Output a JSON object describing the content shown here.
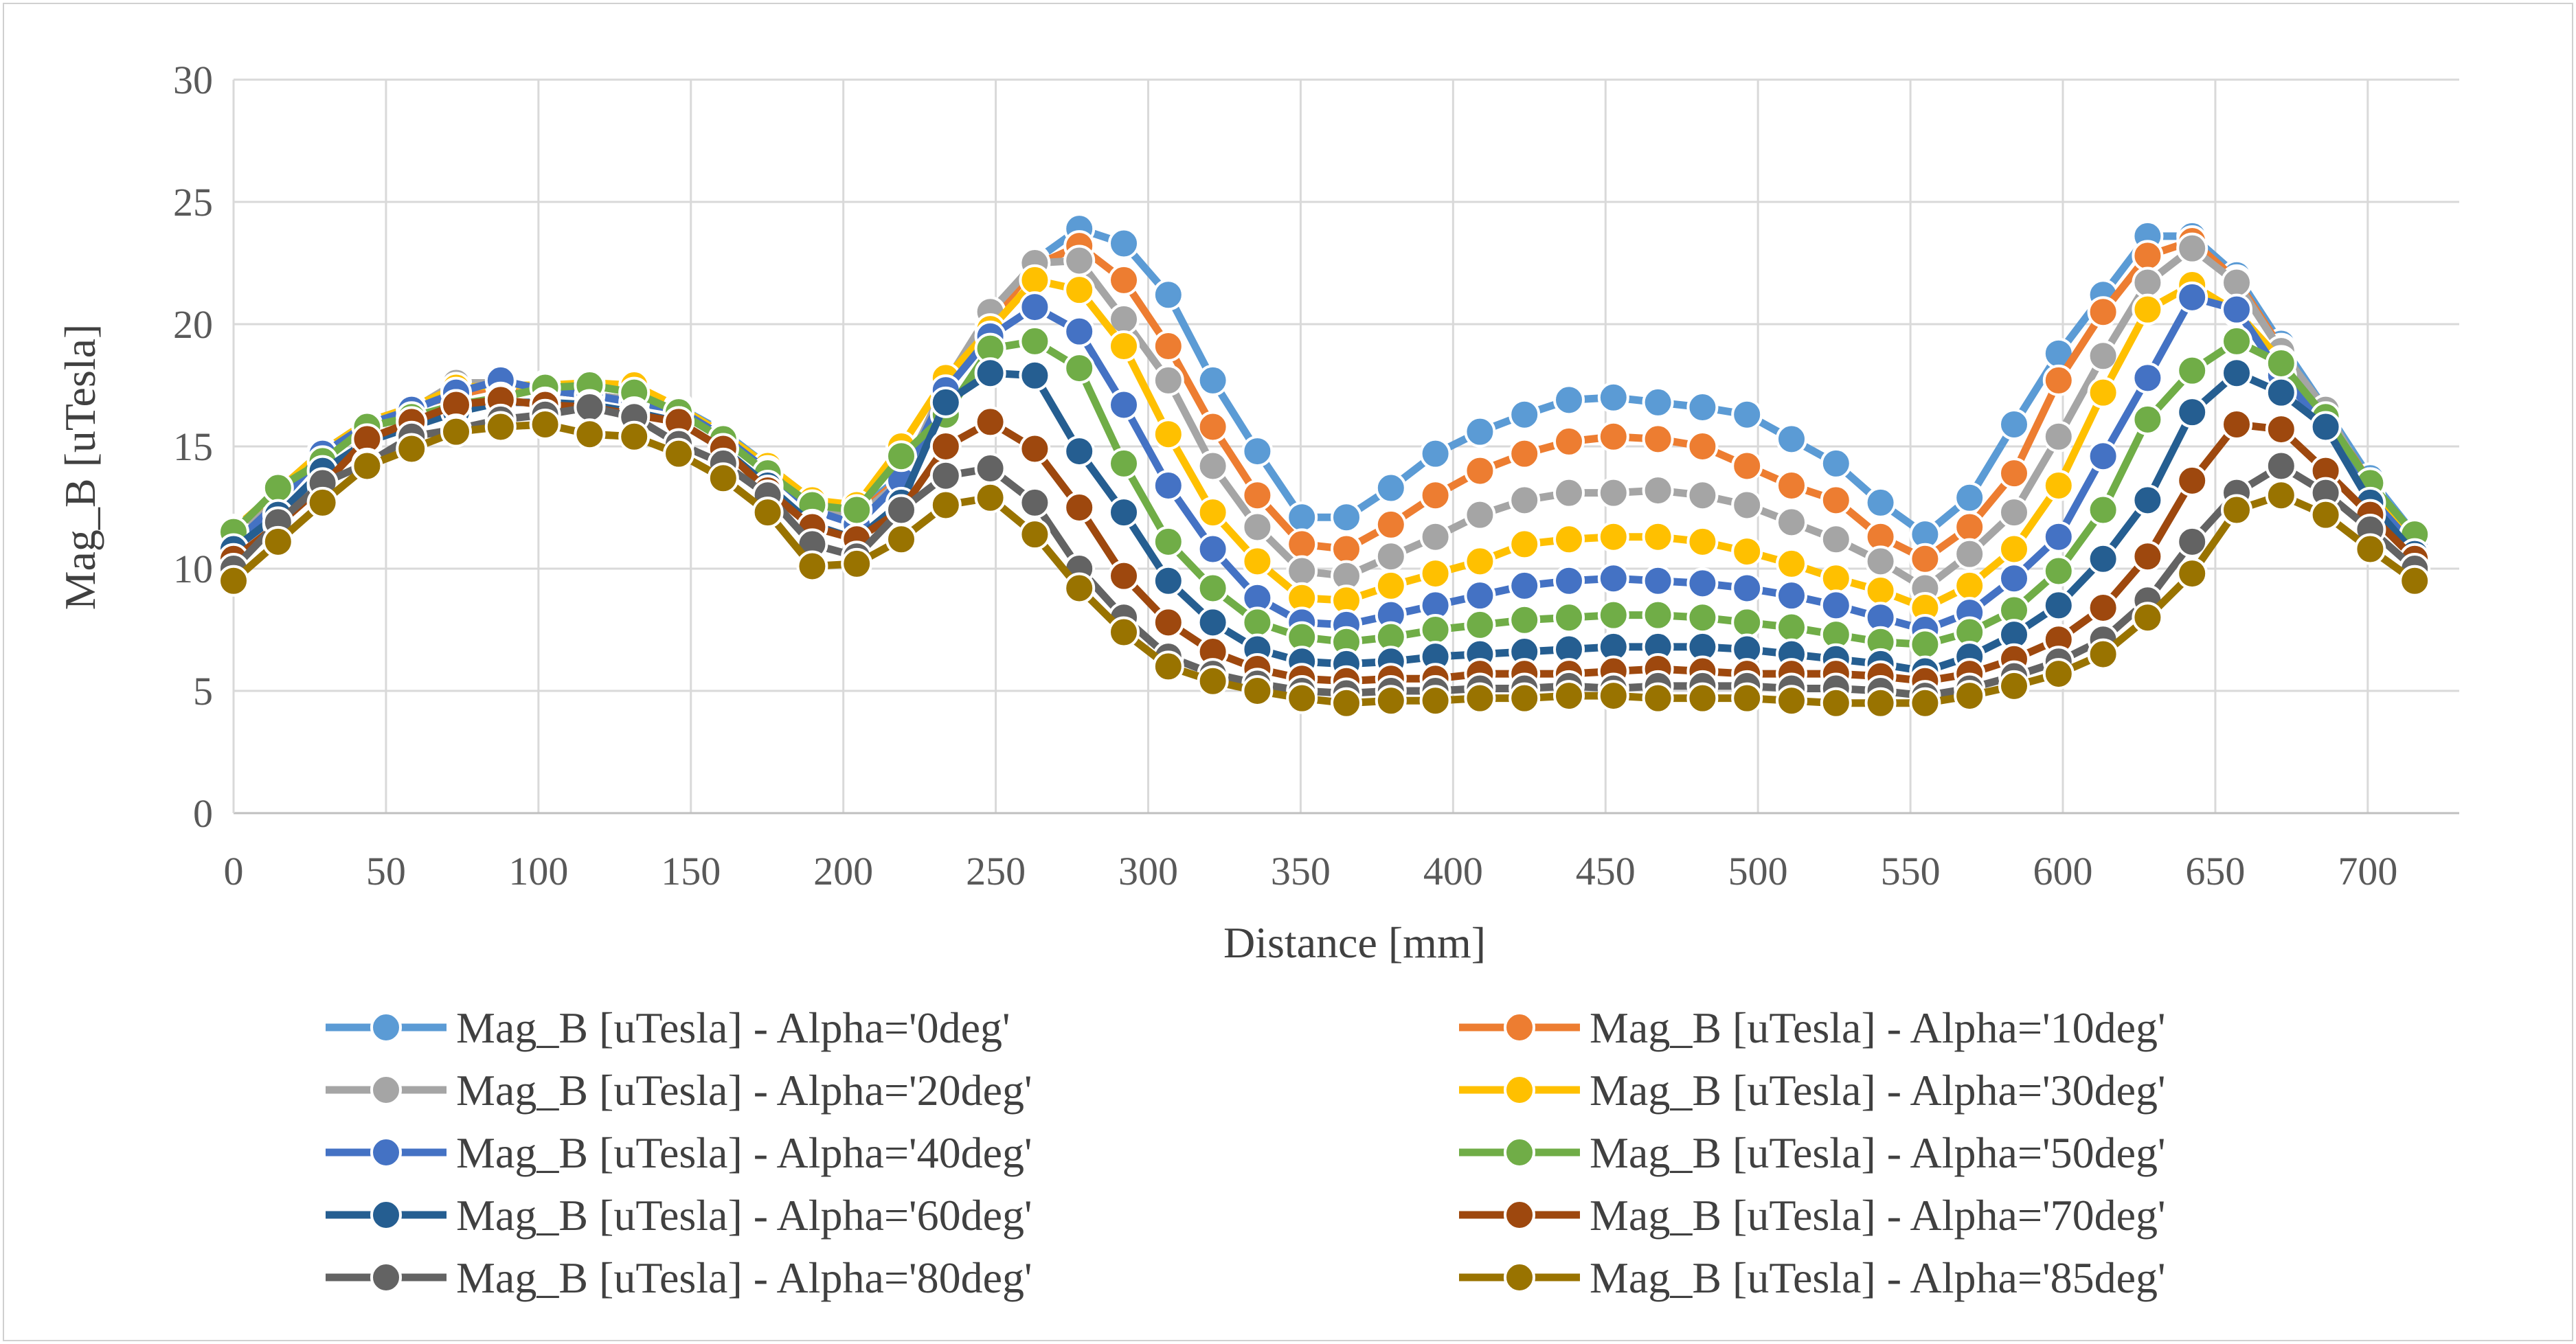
{
  "chart_data": {
    "type": "line",
    "title": "",
    "xlabel": "Distance [mm]",
    "ylabel": "Mag_B [uTesla]",
    "xlim": [
      0,
      730
    ],
    "ylim": [
      0,
      30
    ],
    "x_ticks": [
      "0",
      "50",
      "100",
      "150",
      "200",
      "250",
      "300",
      "350",
      "400",
      "450",
      "500",
      "550",
      "600",
      "650",
      "700"
    ],
    "y_ticks": [
      "0",
      "5",
      "10",
      "15",
      "20",
      "25",
      "30"
    ],
    "grid": true,
    "legend_position": "bottom",
    "x": [
      0,
      14.6,
      29.2,
      43.8,
      58.4,
      73,
      87.6,
      102.2,
      116.8,
      131.4,
      146,
      160.6,
      175.2,
      189.8,
      204.4,
      219,
      233.6,
      248.2,
      262.8,
      277.4,
      292,
      306.6,
      321.2,
      335.8,
      350.4,
      365,
      379.6,
      394.2,
      408.8,
      423.4,
      438,
      452.6,
      467.2,
      481.8,
      496.4,
      511,
      525.6,
      540.2,
      554.8,
      569.4,
      584,
      598.6,
      613.2,
      627.8,
      642.4,
      657,
      671.6,
      686.2,
      700.8,
      715.4
    ],
    "series": [
      {
        "name": "Mag_B [uTesla] - Alpha='0deg'",
        "color": "#5b9bd5",
        "values": [
          11.5,
          13.2,
          14.8,
          16.0,
          16.6,
          17.1,
          17.5,
          17.3,
          17.1,
          16.9,
          16.6,
          15.6,
          14.2,
          12.8,
          12.3,
          13.8,
          17.4,
          20.2,
          22.6,
          23.9,
          23.3,
          21.2,
          17.7,
          14.8,
          12.1,
          12.1,
          13.3,
          14.7,
          15.6,
          16.3,
          16.9,
          17.0,
          16.8,
          16.6,
          16.3,
          15.3,
          14.3,
          12.7,
          11.4,
          12.9,
          15.9,
          18.8,
          21.2,
          23.6,
          23.6,
          22.0,
          19.2,
          16.5,
          13.7,
          11.4
        ]
      },
      {
        "name": "Mag_B [uTesla] - Alpha='10deg'",
        "color": "#ed7d31",
        "values": [
          11.4,
          13.1,
          14.7,
          15.9,
          16.6,
          17.1,
          17.5,
          17.3,
          17.1,
          16.9,
          16.6,
          15.5,
          14.1,
          12.7,
          12.2,
          13.7,
          17.3,
          20.1,
          22.4,
          23.2,
          21.8,
          19.1,
          15.8,
          13.0,
          11.0,
          10.8,
          11.8,
          13.0,
          14.0,
          14.7,
          15.2,
          15.4,
          15.3,
          15.0,
          14.2,
          13.4,
          12.8,
          11.3,
          10.4,
          11.7,
          13.9,
          17.7,
          20.5,
          22.8,
          23.4,
          21.8,
          19.0,
          16.3,
          13.5,
          11.2
        ]
      },
      {
        "name": "Mag_B [uTesla] - Alpha='20deg'",
        "color": "#a5a5a5",
        "values": [
          11.3,
          13.0,
          14.6,
          15.8,
          16.5,
          17.6,
          17.6,
          17.3,
          17.1,
          16.9,
          16.5,
          15.4,
          14.0,
          12.6,
          12.1,
          13.6,
          17.6,
          20.5,
          22.5,
          22.6,
          20.2,
          17.7,
          14.2,
          11.7,
          9.9,
          9.7,
          10.5,
          11.3,
          12.2,
          12.8,
          13.1,
          13.1,
          13.2,
          13.0,
          12.6,
          11.9,
          11.2,
          10.3,
          9.2,
          10.6,
          12.3,
          15.4,
          18.7,
          21.7,
          23.1,
          21.7,
          18.9,
          16.5,
          13.3,
          11.1
        ]
      },
      {
        "name": "Mag_B [uTesla] - Alpha='30deg'",
        "color": "#ffc000",
        "values": [
          11.6,
          13.2,
          14.8,
          16.0,
          16.6,
          17.4,
          17.5,
          17.5,
          17.6,
          17.5,
          16.6,
          15.5,
          14.2,
          12.8,
          12.6,
          15.0,
          17.8,
          19.8,
          21.8,
          21.4,
          19.1,
          15.5,
          12.3,
          10.3,
          8.8,
          8.7,
          9.3,
          9.8,
          10.3,
          11.0,
          11.2,
          11.3,
          11.3,
          11.1,
          10.7,
          10.2,
          9.6,
          9.1,
          8.4,
          9.3,
          10.8,
          13.4,
          17.2,
          20.6,
          21.6,
          20.5,
          18.5,
          15.9,
          13.3,
          11.3
        ]
      },
      {
        "name": "Mag_B [uTesla] - Alpha='40deg'",
        "color": "#4472c4",
        "values": [
          11.0,
          12.7,
          14.7,
          15.9,
          16.5,
          17.2,
          17.7,
          17.3,
          17.1,
          16.8,
          16.5,
          15.4,
          14.0,
          12.4,
          11.8,
          13.6,
          17.3,
          19.5,
          20.7,
          19.7,
          16.7,
          13.4,
          10.8,
          8.8,
          7.8,
          7.7,
          8.1,
          8.5,
          8.9,
          9.3,
          9.5,
          9.6,
          9.5,
          9.4,
          9.2,
          8.9,
          8.5,
          8.0,
          7.5,
          8.2,
          9.6,
          11.3,
          14.6,
          17.8,
          21.1,
          20.6,
          17.9,
          15.8,
          12.9,
          10.9
        ]
      },
      {
        "name": "Mag_B [uTesla] - Alpha='50deg'",
        "color": "#70ad47",
        "values": [
          11.5,
          13.3,
          14.4,
          15.8,
          16.2,
          16.7,
          17.0,
          17.4,
          17.5,
          17.2,
          16.4,
          15.3,
          13.9,
          12.6,
          12.4,
          14.6,
          16.3,
          19.0,
          19.3,
          18.2,
          14.3,
          11.1,
          9.2,
          7.8,
          7.2,
          7.0,
          7.2,
          7.5,
          7.7,
          7.9,
          8.0,
          8.1,
          8.1,
          8.0,
          7.8,
          7.6,
          7.3,
          7.0,
          6.9,
          7.4,
          8.3,
          9.9,
          12.4,
          16.1,
          18.1,
          19.3,
          18.4,
          16.2,
          13.5,
          11.4
        ]
      },
      {
        "name": "Mag_B [uTesla] - Alpha='60deg'",
        "color": "#255e91",
        "values": [
          10.8,
          12.2,
          14.0,
          15.2,
          15.8,
          16.4,
          16.8,
          16.8,
          16.7,
          16.4,
          16.0,
          14.9,
          13.4,
          11.8,
          11.2,
          12.7,
          16.8,
          18.0,
          17.9,
          14.8,
          12.3,
          9.5,
          7.8,
          6.7,
          6.2,
          6.1,
          6.2,
          6.4,
          6.5,
          6.6,
          6.7,
          6.8,
          6.8,
          6.8,
          6.7,
          6.5,
          6.3,
          6.1,
          5.8,
          6.4,
          7.3,
          8.5,
          10.4,
          12.8,
          16.4,
          18.0,
          17.2,
          15.8,
          12.7,
          10.6
        ]
      },
      {
        "name": "Mag_B [uTesla] - Alpha='70deg'",
        "color": "#9e480e",
        "values": [
          10.4,
          11.8,
          13.4,
          15.3,
          16.0,
          16.7,
          16.9,
          16.7,
          16.6,
          16.3,
          16.0,
          14.9,
          13.2,
          11.7,
          11.2,
          12.4,
          15.0,
          16.0,
          14.9,
          12.5,
          9.7,
          7.8,
          6.6,
          5.9,
          5.5,
          5.4,
          5.5,
          5.5,
          5.7,
          5.7,
          5.7,
          5.8,
          5.9,
          5.8,
          5.7,
          5.7,
          5.7,
          5.6,
          5.4,
          5.7,
          6.3,
          7.1,
          8.4,
          10.5,
          13.6,
          15.9,
          15.7,
          14.0,
          12.2,
          10.4
        ]
      },
      {
        "name": "Mag_B [uTesla] - Alpha='80deg'",
        "color": "#636363",
        "values": [
          10.0,
          11.9,
          13.5,
          14.3,
          15.4,
          15.7,
          16.1,
          16.3,
          16.6,
          16.2,
          15.1,
          14.3,
          13.0,
          11.0,
          10.5,
          12.4,
          13.8,
          14.1,
          12.7,
          10.0,
          8.0,
          6.4,
          5.7,
          5.3,
          5.0,
          4.9,
          5.0,
          5.0,
          5.1,
          5.1,
          5.2,
          5.1,
          5.2,
          5.2,
          5.2,
          5.1,
          5.1,
          5.0,
          4.8,
          5.1,
          5.6,
          6.2,
          7.1,
          8.7,
          11.1,
          13.1,
          14.2,
          13.1,
          11.6,
          10.0
        ]
      },
      {
        "name": "Mag_B [uTesla] - Alpha='85deg'",
        "color": "#997300",
        "values": [
          9.5,
          11.1,
          12.7,
          14.2,
          14.9,
          15.6,
          15.8,
          15.9,
          15.5,
          15.4,
          14.7,
          13.7,
          12.3,
          10.1,
          10.2,
          11.2,
          12.6,
          12.9,
          11.4,
          9.2,
          7.4,
          6.0,
          5.4,
          5.0,
          4.7,
          4.5,
          4.6,
          4.6,
          4.7,
          4.7,
          4.8,
          4.8,
          4.7,
          4.7,
          4.7,
          4.6,
          4.5,
          4.5,
          4.5,
          4.8,
          5.2,
          5.7,
          6.5,
          8.0,
          9.8,
          12.4,
          13.0,
          12.2,
          10.8,
          9.5
        ]
      }
    ]
  }
}
